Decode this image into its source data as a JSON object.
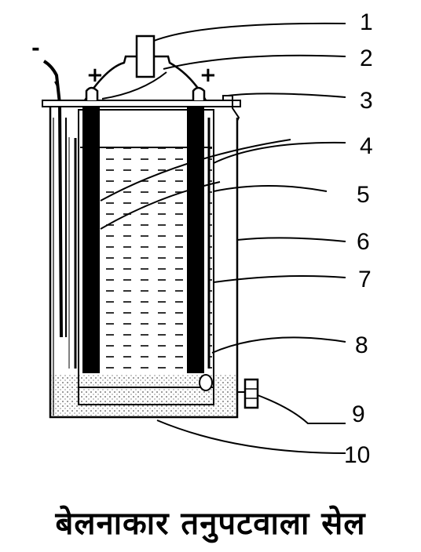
{
  "caption": "बेलनाकार तनुपटवाला सेल",
  "labels": [
    "1",
    "2",
    "3",
    "4",
    "5",
    "6",
    "7",
    "8",
    "9",
    "10"
  ],
  "signs": {
    "negative": "-",
    "positive_left": "+",
    "positive_right": "+"
  }
}
